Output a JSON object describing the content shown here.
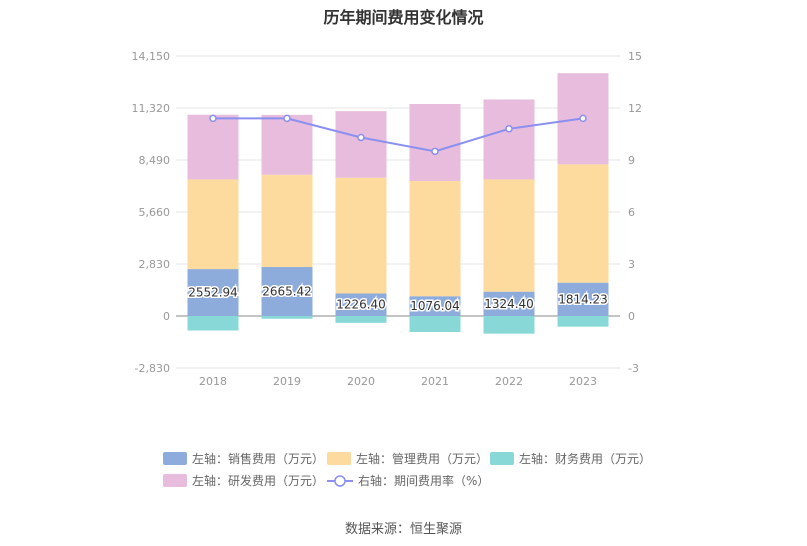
{
  "title": "历年期间费用变化情况",
  "source": "数据来源：恒生聚源",
  "colors": {
    "sales": "#8EACDB",
    "admin": "#FDDA9E",
    "finance": "#88D8D8",
    "rnd": "#E7BCDC",
    "ratio": "#8A8FF0",
    "grid": "#E6E6E6",
    "axis_text": "#999999"
  },
  "legend": [
    {
      "key": "sales",
      "label": "左轴：销售费用（万元）"
    },
    {
      "key": "admin",
      "label": "左轴：管理费用（万元）"
    },
    {
      "key": "finance",
      "label": "左轴：财务费用（万元）"
    },
    {
      "key": "rnd",
      "label": "左轴：研发费用（万元）"
    },
    {
      "key": "ratio",
      "label": "右轴：期间费用率（%）"
    }
  ],
  "chart_data": {
    "type": "bar",
    "stacked": true,
    "title": "历年期间费用变化情况",
    "categories": [
      "2018",
      "2019",
      "2020",
      "2021",
      "2022",
      "2023"
    ],
    "left_axis": {
      "ticks": [
        "14,150",
        "11,320",
        "8,490",
        "5,660",
        "2,830",
        "0",
        "-2,830"
      ],
      "ylim": [
        -2830,
        14150
      ]
    },
    "right_axis": {
      "ticks": [
        "15",
        "12",
        "9",
        "6",
        "3",
        "0",
        "-3"
      ],
      "ylim": [
        -3,
        15
      ]
    },
    "series": [
      {
        "key": "sales",
        "name": "左轴：销售费用（万元）",
        "axis": "left",
        "values": [
          2552.94,
          2665.42,
          1226.4,
          1076.04,
          1324.4,
          1814.23
        ],
        "labels": [
          "2552.94",
          "2665.42",
          "1226.40",
          "1076.04",
          "1324.40",
          "1814.23"
        ]
      },
      {
        "key": "admin",
        "name": "左轴：管理费用（万元）",
        "axis": "left",
        "values": [
          4880,
          5020,
          6300,
          6270,
          6110,
          6440
        ]
      },
      {
        "key": "finance",
        "name": "左轴：财务费用（万元）",
        "axis": "left",
        "values": [
          -790,
          -150,
          -370,
          -870,
          -960,
          -580
        ]
      },
      {
        "key": "rnd",
        "name": "左轴：研发费用（万元）",
        "axis": "left",
        "values": [
          3520,
          3260,
          3620,
          4190,
          4350,
          4960
        ]
      },
      {
        "key": "ratio",
        "name": "右轴：期间费用率（%）",
        "axis": "right",
        "type": "line",
        "values": [
          11.4,
          11.4,
          10.3,
          9.5,
          10.8,
          11.4
        ]
      }
    ]
  }
}
